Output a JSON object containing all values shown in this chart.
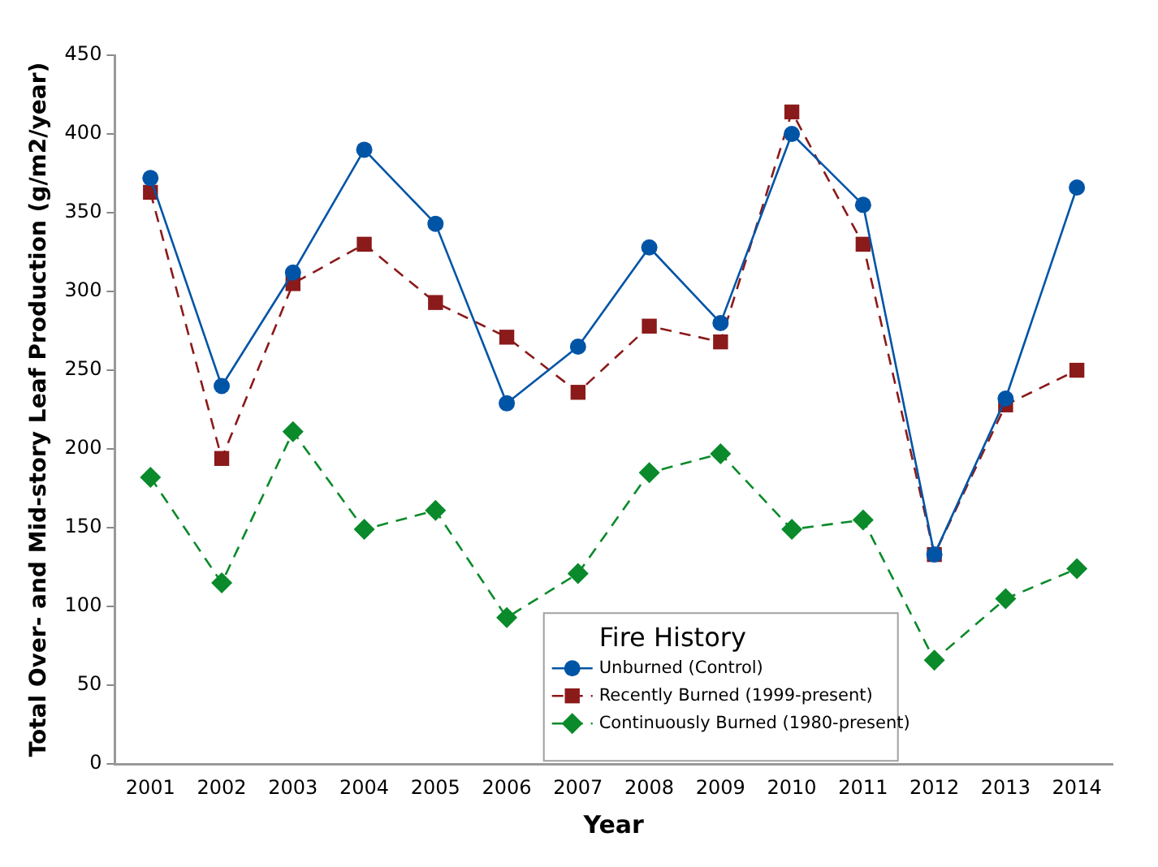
{
  "chart_data": {
    "type": "line",
    "xlabel": "Year",
    "ylabel": "Total Over- and Mid-story Leaf Production (g/m2/year)",
    "legend_title": "Fire History",
    "legend": "bottom right",
    "grid": false,
    "categories": [
      "2001",
      "2002",
      "2003",
      "2004",
      "2005",
      "2006",
      "2007",
      "2008",
      "2009",
      "2010",
      "2011",
      "2012",
      "2013",
      "2014"
    ],
    "ylim": [
      0,
      450
    ],
    "yticks": [
      0,
      50,
      100,
      150,
      200,
      250,
      300,
      350,
      400,
      450
    ],
    "series": [
      {
        "name": "Unburned (Control)",
        "color": "#0054a6",
        "marker": "circle",
        "line_style": "solid",
        "values": [
          372,
          240,
          312,
          390,
          343,
          229,
          265,
          328,
          280,
          400,
          355,
          133,
          232,
          366
        ]
      },
      {
        "name": "Recently Burned (1999-present)",
        "color": "#8b1a1a",
        "marker": "square",
        "line_style": "dashed",
        "values": [
          363,
          194,
          305,
          330,
          293,
          271,
          236,
          278,
          268,
          414,
          330,
          133,
          228,
          250
        ]
      },
      {
        "name": "Continuously Burned (1980-present)",
        "color": "#0a8a2a",
        "marker": "diamond",
        "line_style": "dashed",
        "values": [
          182,
          115,
          211,
          149,
          161,
          93,
          121,
          185,
          197,
          149,
          155,
          66,
          105,
          124
        ]
      }
    ]
  }
}
